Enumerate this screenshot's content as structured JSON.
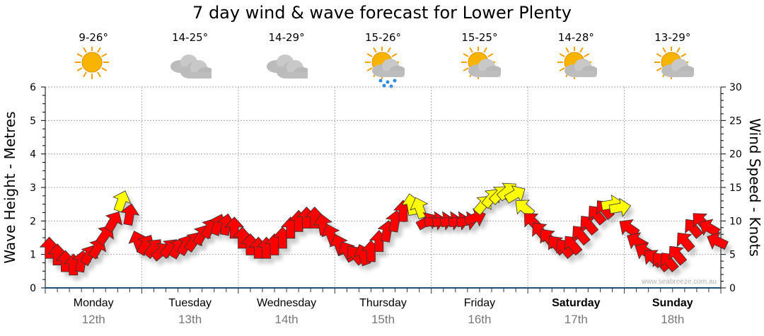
{
  "chart_data": {
    "type": "scatter",
    "title": "7 day wind & wave forecast for Lower Plenty",
    "ylabel_left": "Wave Height - Metres",
    "ylabel_right": "Wind Speed - Knots",
    "ylim_left": [
      0,
      6
    ],
    "ylim_right": [
      0,
      30
    ],
    "yticks_left": [
      "0",
      "1",
      "2",
      "3",
      "4",
      "5",
      "6"
    ],
    "yticks_right": [
      "0",
      "5",
      "10",
      "15",
      "20",
      "25",
      "30"
    ],
    "grid": true,
    "yellow_threshold_knots": 12,
    "colors": {
      "normal": "#ff0000",
      "strong": "#ffff00",
      "axis": "#1a4f7a"
    },
    "days": [
      {
        "name": "Monday",
        "date": "12th",
        "bold": false,
        "temp": "9-26°",
        "icon": "sunny-icon"
      },
      {
        "name": "Tuesday",
        "date": "13th",
        "bold": false,
        "temp": "14-25°",
        "icon": "cloudy-icon"
      },
      {
        "name": "Wednesday",
        "date": "14th",
        "bold": false,
        "temp": "14-29°",
        "icon": "cloudy-icon"
      },
      {
        "name": "Thursday",
        "date": "15th",
        "bold": false,
        "temp": "15-26°",
        "icon": "sun-cloud-rain-icon"
      },
      {
        "name": "Friday",
        "date": "16th",
        "bold": false,
        "temp": "15-25°",
        "icon": "partly-cloudy-icon"
      },
      {
        "name": "Saturday",
        "date": "17th",
        "bold": true,
        "temp": "14-28°",
        "icon": "partly-cloudy-icon"
      },
      {
        "name": "Sunday",
        "date": "18th",
        "bold": true,
        "temp": "13-29°",
        "icon": "partly-cloudy-icon"
      }
    ],
    "hours_step": 2,
    "wind_speed_knots": [
      6,
      5,
      4,
      3.5,
      4,
      5,
      6,
      8,
      10,
      13,
      11,
      7,
      6.5,
      6,
      5.5,
      6,
      6,
      6.5,
      7,
      8,
      9,
      9.5,
      9.5,
      9,
      7.5,
      6.5,
      6,
      6,
      6.5,
      7.5,
      9,
      10,
      10.5,
      10.5,
      9.5,
      8,
      6.5,
      5.5,
      5,
      5,
      5.5,
      7,
      8.5,
      10,
      11.5,
      12.5,
      12,
      10,
      10,
      10,
      10,
      10,
      10,
      10.5,
      12.5,
      13.5,
      14,
      14.5,
      14,
      12,
      10,
      8.5,
      7.5,
      6.5,
      6,
      6.5,
      8,
      9.5,
      11,
      11.8,
      12.5,
      12,
      9,
      7,
      5.5,
      4.5,
      4,
      4,
      5,
      7,
      9,
      10,
      9,
      7
    ],
    "wind_direction_deg": [
      0,
      0,
      0,
      0,
      10,
      30,
      30,
      35,
      30,
      20,
      10,
      -20,
      30,
      40,
      50,
      40,
      30,
      30,
      35,
      30,
      30,
      20,
      10,
      0,
      0,
      0,
      0,
      0,
      0,
      0,
      0,
      0,
      0,
      0,
      -10,
      -20,
      -20,
      -30,
      -40,
      -20,
      0,
      0,
      10,
      10,
      0,
      -10,
      -20,
      60,
      80,
      80,
      80,
      80,
      80,
      70,
      40,
      40,
      45,
      50,
      60,
      -50,
      -45,
      -40,
      -40,
      -40,
      -40,
      -40,
      -40,
      -40,
      -40,
      -40,
      80,
      80,
      -55,
      -60,
      -60,
      -50,
      -40,
      -40,
      -40,
      -40,
      -40,
      -45,
      -60,
      -65
    ]
  },
  "watermark": "www.seabreeze.com.au"
}
